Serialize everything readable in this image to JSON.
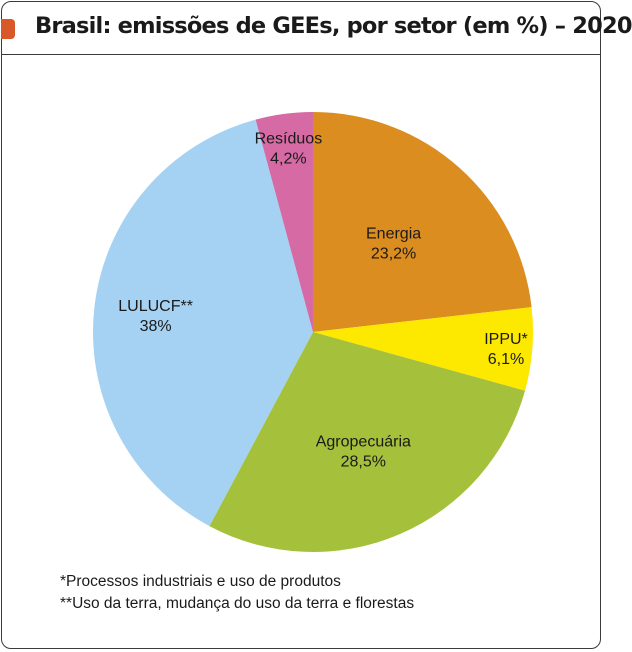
{
  "title": "Brasil: emissões de GEEs, por setor (em %) – 2020",
  "colors": {
    "title_marker": "#d8582a",
    "Energia": "#dc8d1f",
    "IPPU*": "#fde800",
    "Agropecuária": "#a5c03a",
    "LULUCF**": "#a5d2f3",
    "Resíduos": "#d56aa4"
  },
  "chart_data": {
    "type": "pie",
    "title": "Brasil: emissões de GEEs, por setor (em %) – 2020",
    "unit": "%",
    "slices": [
      {
        "label": "Energia",
        "value": 23.2,
        "value_label": "23,2%",
        "color": "#dc8d1f"
      },
      {
        "label": "IPPU*",
        "value": 6.1,
        "value_label": "6,1%",
        "color": "#fde800"
      },
      {
        "label": "Agropecuária",
        "value": 28.5,
        "value_label": "28,5%",
        "color": "#a5c03a"
      },
      {
        "label": "LULUCF**",
        "value": 38,
        "value_label": "38%",
        "color": "#a5d2f3"
      },
      {
        "label": "Resíduos",
        "value": 4.2,
        "value_label": "4,2%",
        "color": "#d56aa4"
      }
    ]
  },
  "footnotes": [
    "*Processos industriais e uso de produtos",
    "**Uso da terra, mudança do uso da terra e florestas"
  ]
}
